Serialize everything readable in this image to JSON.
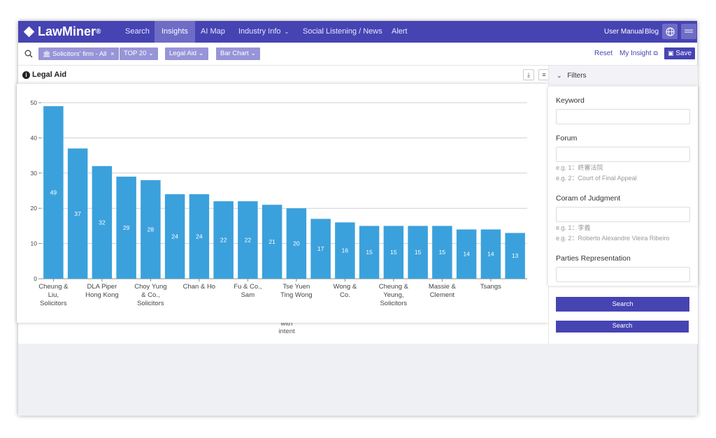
{
  "nav": {
    "logo": "LawMiner",
    "logo_mark": "®",
    "tabs": [
      "Search",
      "Insights",
      "AI Map",
      "Industry Info",
      "Social Listening / News",
      "Alert"
    ],
    "user_manual": "User Manual",
    "blog": "Blog"
  },
  "toolbar": {
    "chips": [
      "Solicitors' firm - All",
      "TOP 20",
      "Legal Aid",
      "Bar Chart"
    ],
    "reset": "Reset",
    "my_insight": "My Insight",
    "save": "Save"
  },
  "panel": {
    "title": "Legal Aid",
    "ghost_text_1": "with",
    "ghost_text_2": "intent"
  },
  "filters": {
    "header": "Filters",
    "keyword_label": "Keyword",
    "forum_label": "Forum",
    "forum_hint_1": "e.g. 1：終審法院",
    "forum_hint_2": "e.g. 2：Court of Final Appeal",
    "coram_label": "Coram of Judgment",
    "coram_hint_1": "e.g. 1：李義",
    "coram_hint_2": "e.g. 2：Roberto Alexandre Vieira Ribeiro",
    "parties_label": "Parties Representation",
    "search": "Search",
    "search_2": "Search"
  },
  "colors": {
    "nav": "#4644b3",
    "bar": "#3ba1dc",
    "chip": "#9795d8"
  },
  "chart_data": {
    "type": "bar",
    "ylim": [
      0,
      50
    ],
    "yticks": [
      0,
      10,
      20,
      30,
      40,
      50
    ],
    "grid": true,
    "values": [
      49,
      37,
      32,
      29,
      28,
      24,
      24,
      22,
      22,
      21,
      20,
      17,
      16,
      15,
      15,
      15,
      15,
      14,
      14,
      13
    ],
    "x_labels": [
      {
        "index": 0,
        "lines": [
          "Cheung &",
          "Liu,",
          "Solicitors"
        ]
      },
      {
        "index": 2,
        "lines": [
          "DLA Piper",
          "Hong Kong"
        ]
      },
      {
        "index": 4,
        "lines": [
          "Choy Yung",
          "& Co.,",
          "Solicitors"
        ]
      },
      {
        "index": 6,
        "lines": [
          "Chan & Ho"
        ]
      },
      {
        "index": 8,
        "lines": [
          "Fu & Co.,",
          "Sam"
        ]
      },
      {
        "index": 10,
        "lines": [
          "Tse Yuen",
          "Ting Wong"
        ]
      },
      {
        "index": 12,
        "lines": [
          "Wong &",
          "Co."
        ]
      },
      {
        "index": 14,
        "lines": [
          "Cheung &",
          "Yeung,",
          "Solicitors"
        ]
      },
      {
        "index": 16,
        "lines": [
          "Massie &",
          "Clement"
        ]
      },
      {
        "index": 18,
        "lines": [
          "Tsangs"
        ]
      }
    ]
  }
}
